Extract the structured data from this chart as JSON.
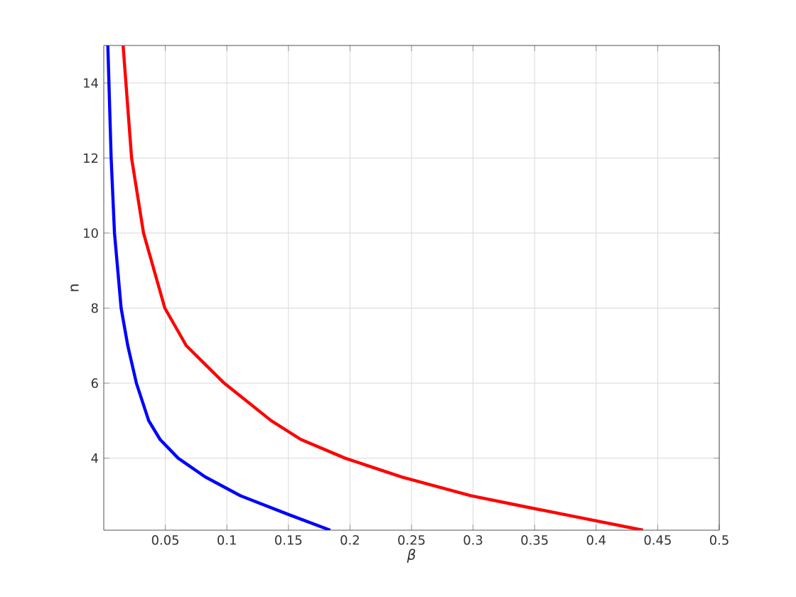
{
  "chart_data": {
    "type": "line",
    "xlabel": "β",
    "ylabel": "n",
    "xlim": [
      0,
      0.5
    ],
    "ylim": [
      2.08,
      15
    ],
    "xticks": [
      0.05,
      0.1,
      0.15,
      0.2,
      0.25,
      0.3,
      0.35,
      0.4,
      0.45,
      0.5
    ],
    "yticks": [
      4,
      6,
      8,
      10,
      12,
      14
    ],
    "grid": true,
    "line_style": "solid",
    "marker": "none",
    "series": [
      {
        "color": "#0000ff",
        "x": [
          0.0033,
          0.006,
          0.0087,
          0.0141,
          0.0195,
          0.0265,
          0.0365,
          0.0457,
          0.0604,
          0.0824,
          0.111,
          0.15,
          0.184
        ],
        "values": [
          15,
          12,
          10,
          8,
          7,
          6,
          5,
          4.5,
          4,
          3.5,
          3,
          2.5,
          2.08
        ]
      },
      {
        "color": "#ff0000",
        "x": [
          0.0157,
          0.0226,
          0.0323,
          0.0496,
          0.067,
          0.0978,
          0.136,
          0.16,
          0.196,
          0.242,
          0.298,
          0.343,
          0.374,
          0.438
        ],
        "values": [
          15,
          12,
          10,
          8,
          7,
          6,
          5,
          4.5,
          4,
          3.5,
          3,
          2.7,
          2.5,
          2.08
        ]
      }
    ]
  }
}
